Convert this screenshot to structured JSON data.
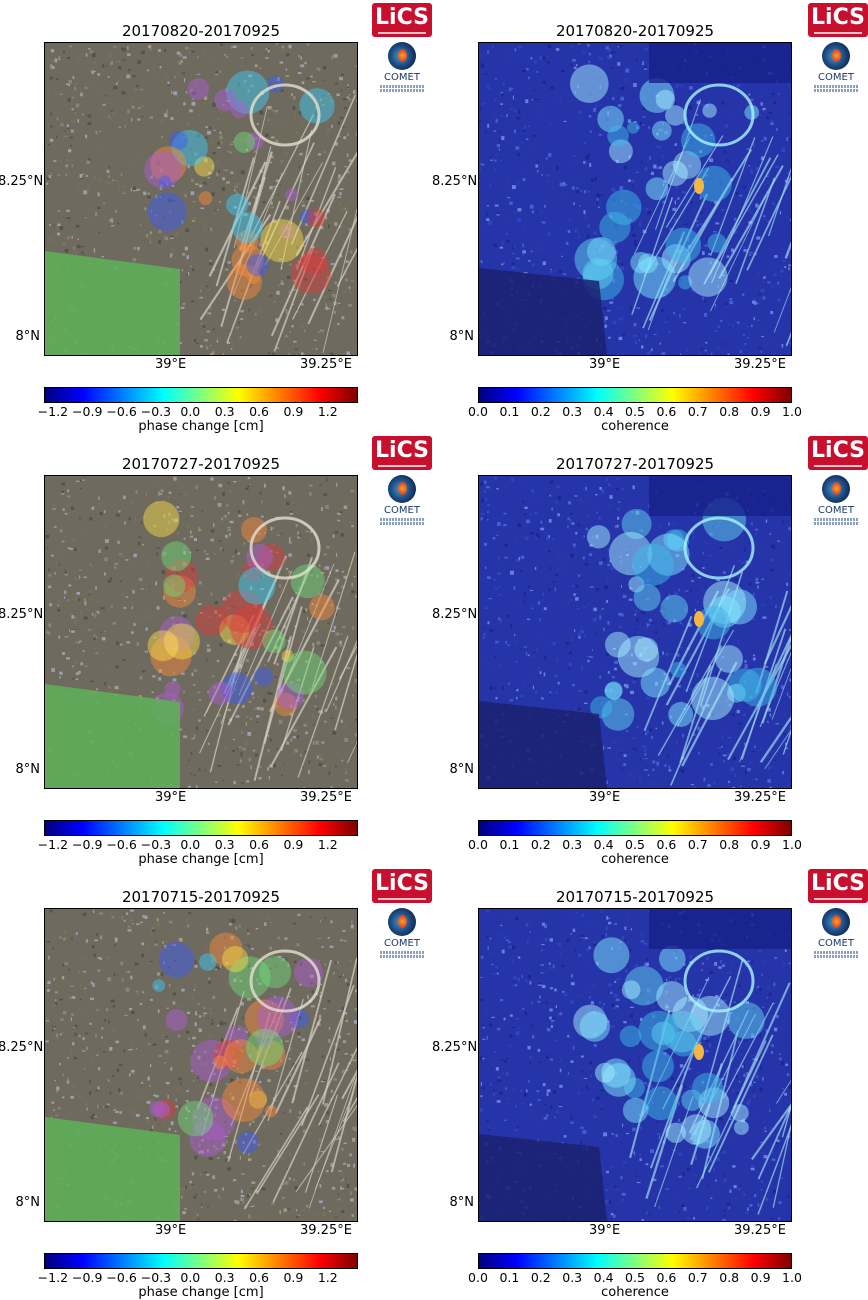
{
  "logos": {
    "lics_text": "LiCS",
    "comet_text": "COMET"
  },
  "axes": {
    "x_ticks": [
      "39°E",
      "39.25°E"
    ],
    "y_ticks": [
      "8.25°N",
      "8°N"
    ]
  },
  "colorbars": {
    "phase": {
      "label": "phase change [cm]",
      "ticks": [
        "−1.2",
        "−0.9",
        "−0.6",
        "−0.3",
        "0.0",
        "0.3",
        "0.6",
        "0.9",
        "1.2"
      ]
    },
    "coherence": {
      "label": "coherence",
      "ticks": [
        "0.0",
        "0.1",
        "0.2",
        "0.3",
        "0.4",
        "0.5",
        "0.6",
        "0.7",
        "0.8",
        "0.9",
        "1.0"
      ]
    }
  },
  "rows": [
    {
      "phase_title": "20170820-20170925",
      "coh_title": "20170820-20170925"
    },
    {
      "phase_title": "20170727-20170925",
      "coh_title": "20170727-20170925"
    },
    {
      "phase_title": "20170715-20170925",
      "coh_title": "20170715-20170925"
    }
  ],
  "colors": {
    "lics_red": "#c8102e",
    "comet_blue": "#1a3a6b",
    "mask_green": "#5fae5a",
    "coherence_blue": "#1c2a9e"
  }
}
